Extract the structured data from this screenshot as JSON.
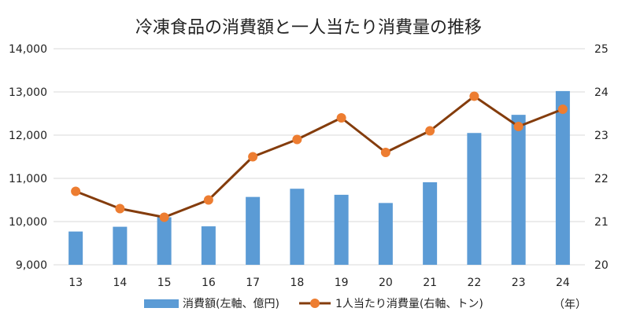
{
  "chart_data": {
    "type": "bar+line",
    "title": "冷凍食品の消費額と一人当たり消費量の推移",
    "categories": [
      "13",
      "14",
      "15",
      "16",
      "17",
      "18",
      "19",
      "20",
      "21",
      "22",
      "23",
      "24"
    ],
    "x_unit_label": "（年）",
    "y_left": {
      "min": 9000,
      "max": 14000,
      "step": 1000,
      "tick_labels": [
        "9,000",
        "10,000",
        "11,000",
        "12,000",
        "13,000",
        "14,000"
      ]
    },
    "y_right": {
      "min": 20,
      "max": 25,
      "step": 1,
      "tick_labels": [
        "20",
        "21",
        "22",
        "23",
        "24",
        "25"
      ]
    },
    "grid": true,
    "legend_position": "bottom",
    "series": [
      {
        "name": "消費額(左軸、億円)",
        "type": "bar",
        "axis": "left",
        "color": "#5b9bd5",
        "values": [
          9770,
          9880,
          10100,
          9890,
          10570,
          10760,
          10620,
          10430,
          10910,
          12050,
          12470,
          13020
        ]
      },
      {
        "name": "1人当たり消費量(右軸、トン)",
        "type": "line",
        "axis": "right",
        "color": "#843c0c",
        "marker_color": "#ed7d31",
        "values": [
          21.7,
          21.3,
          21.1,
          21.5,
          22.5,
          22.9,
          23.4,
          22.6,
          23.1,
          23.9,
          23.2,
          23.6
        ]
      }
    ]
  }
}
